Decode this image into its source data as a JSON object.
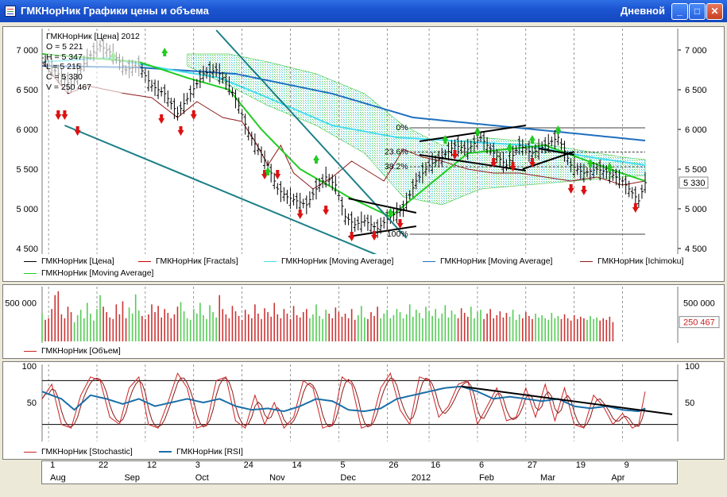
{
  "window": {
    "title": "ГМКНорНик Графики цены и объема",
    "period": "Дневной",
    "buttons": {
      "minimize": "_",
      "maximize": "□",
      "close": "✕"
    }
  },
  "colors": {
    "price": "#000000",
    "fractals": "#cc0000",
    "ma_fast": "#22cc22",
    "ma_mid": "#44ddee",
    "ma_slow": "#1f6fbf",
    "ichimoku": "#8b1a1a",
    "cloud": "#55cc55",
    "cloud_alt": "#44ccee",
    "vol_up": "#55cc55",
    "vol_down": "#cc3333",
    "stoch": "#cc2222",
    "rsi": "#1a6fa8",
    "trend": "#1a7f86"
  },
  "price_panel": {
    "ohlc": {
      "title": "ГМКНорНик [Цена] 2012",
      "open": "O = 5 221",
      "high": "H = 5 347",
      "low": "L = 5 215",
      "close": "C = 5 330",
      "volume": "V = 250 467"
    },
    "last_price": "5 330",
    "y_ticks": [
      "7 000",
      "6 500",
      "6 000",
      "5 500",
      "5 000",
      "4 500"
    ],
    "fib_levels": [
      {
        "label": "0%",
        "value": 6020
      },
      {
        "label": "23.6%",
        "value": 5715
      },
      {
        "label": "38.2%",
        "value": 5530
      },
      {
        "label": "100%",
        "value": 4680
      }
    ],
    "legend": [
      {
        "label": "ГМКНорНик [Цена]",
        "color": "#000000"
      },
      {
        "label": "ГМКНорНик [Fractals]",
        "color": "#cc0000"
      },
      {
        "label": "ГМКНорНик [Moving Average]",
        "color": "#44ddee"
      },
      {
        "label": "ГМКНорНик [Moving Average]",
        "color": "#1f6fbf"
      },
      {
        "label": "ГМКНорНик [Ichimoku]",
        "color": "#8b1a1a"
      },
      {
        "label": "ГМКНорНик [Moving Average]",
        "color": "#22cc22"
      }
    ]
  },
  "volume_panel": {
    "y_tick": "500 000",
    "last_volume": "250 467",
    "legend": [
      {
        "label": "ГМКНорНик [Объем]",
        "color": "#cc2222"
      }
    ]
  },
  "osc_panel": {
    "y_ticks": [
      "100",
      "50"
    ],
    "legend": [
      {
        "label": "ГМКНорНик [Stochastic]",
        "color": "#cc2222"
      },
      {
        "label": "ГМКНорНик [RSI]",
        "color": "#1a6fa8"
      }
    ]
  },
  "date_axis": {
    "days": [
      {
        "label": "1",
        "idx": 2
      },
      {
        "label": "22",
        "idx": 17
      },
      {
        "label": "12",
        "idx": 32
      },
      {
        "label": "3",
        "idx": 47
      },
      {
        "label": "24",
        "idx": 62
      },
      {
        "label": "14",
        "idx": 77
      },
      {
        "label": "5",
        "idx": 92
      },
      {
        "label": "26",
        "idx": 107
      },
      {
        "label": "16",
        "idx": 120
      },
      {
        "label": "6",
        "idx": 135
      },
      {
        "label": "27",
        "idx": 150
      },
      {
        "label": "19",
        "idx": 165
      },
      {
        "label": "9",
        "idx": 180
      }
    ],
    "months": [
      {
        "label": "Aug",
        "idx": 2
      },
      {
        "label": "Sep",
        "idx": 25
      },
      {
        "label": "Oct",
        "idx": 47
      },
      {
        "label": "Nov",
        "idx": 70
      },
      {
        "label": "Dec",
        "idx": 92
      },
      {
        "label": "2012",
        "idx": 114
      },
      {
        "label": "Feb",
        "idx": 135
      },
      {
        "label": "Mar",
        "idx": 154
      },
      {
        "label": "Apr",
        "idx": 176
      }
    ]
  },
  "chart_data": {
    "type": "line",
    "title": "ГМКНорНик Графики цены и объема",
    "ylim": [
      4450,
      7250
    ],
    "ohlc_last": {
      "open": 5221,
      "high": 5347,
      "low": 5215,
      "close": 5330,
      "volume": 250467
    },
    "close_anchors": [
      [
        0,
        6900
      ],
      [
        5,
        6700
      ],
      [
        9,
        6550
      ],
      [
        14,
        6900
      ],
      [
        18,
        7050
      ],
      [
        22,
        6950
      ],
      [
        26,
        6750
      ],
      [
        30,
        6800
      ],
      [
        34,
        6550
      ],
      [
        38,
        6450
      ],
      [
        42,
        6200
      ],
      [
        46,
        6450
      ],
      [
        50,
        6700
      ],
      [
        54,
        6750
      ],
      [
        58,
        6550
      ],
      [
        61,
        6300
      ],
      [
        64,
        5950
      ],
      [
        67,
        5750
      ],
      [
        70,
        5550
      ],
      [
        73,
        5250
      ],
      [
        76,
        5150
      ],
      [
        79,
        5100
      ],
      [
        82,
        5050
      ],
      [
        85,
        5250
      ],
      [
        88,
        5400
      ],
      [
        91,
        5300
      ],
      [
        94,
        4900
      ],
      [
        97,
        4800
      ],
      [
        100,
        4850
      ],
      [
        104,
        4750
      ],
      [
        108,
        4900
      ],
      [
        112,
        5000
      ],
      [
        116,
        5350
      ],
      [
        120,
        5550
      ],
      [
        124,
        5650
      ],
      [
        128,
        5800
      ],
      [
        132,
        5750
      ],
      [
        136,
        5900
      ],
      [
        140,
        5700
      ],
      [
        144,
        5550
      ],
      [
        148,
        5800
      ],
      [
        152,
        5700
      ],
      [
        156,
        5800
      ],
      [
        160,
        5900
      ],
      [
        164,
        5550
      ],
      [
        168,
        5450
      ],
      [
        172,
        5500
      ],
      [
        176,
        5450
      ],
      [
        180,
        5350
      ],
      [
        183,
        5200
      ],
      [
        185,
        5100
      ],
      [
        187,
        5330
      ]
    ],
    "ma_fast_anchors": [
      [
        0,
        6950
      ],
      [
        15,
        6900
      ],
      [
        30,
        6850
      ],
      [
        45,
        6650
      ],
      [
        58,
        6500
      ],
      [
        68,
        6000
      ],
      [
        80,
        5500
      ],
      [
        95,
        5150
      ],
      [
        108,
        4900
      ],
      [
        120,
        5300
      ],
      [
        132,
        5700
      ],
      [
        144,
        5750
      ],
      [
        156,
        5800
      ],
      [
        166,
        5650
      ],
      [
        176,
        5500
      ],
      [
        187,
        5350
      ]
    ],
    "ma_mid_anchors": [
      [
        0,
        6850
      ],
      [
        20,
        6900
      ],
      [
        40,
        6750
      ],
      [
        55,
        6650
      ],
      [
        70,
        6400
      ],
      [
        90,
        6050
      ],
      [
        110,
        5900
      ],
      [
        130,
        5850
      ],
      [
        150,
        5800
      ],
      [
        170,
        5650
      ],
      [
        187,
        5550
      ]
    ],
    "ma_slow_anchors": [
      [
        0,
        6800
      ],
      [
        30,
        6780
      ],
      [
        60,
        6700
      ],
      [
        90,
        6450
      ],
      [
        115,
        6150
      ],
      [
        140,
        6050
      ],
      [
        165,
        5950
      ],
      [
        187,
        5860
      ]
    ],
    "ichimoku_anchors": [
      [
        0,
        6850
      ],
      [
        8,
        6450
      ],
      [
        14,
        6550
      ],
      [
        20,
        6500
      ],
      [
        26,
        6450
      ],
      [
        34,
        6400
      ],
      [
        42,
        6150
      ],
      [
        48,
        6350
      ],
      [
        56,
        6150
      ],
      [
        62,
        6100
      ],
      [
        66,
        5850
      ],
      [
        70,
        5550
      ],
      [
        74,
        5800
      ],
      [
        78,
        5450
      ],
      [
        84,
        5250
      ],
      [
        90,
        5400
      ],
      [
        96,
        5600
      ],
      [
        100,
        5500
      ],
      [
        106,
        5350
      ],
      [
        112,
        5750
      ],
      [
        118,
        5650
      ],
      [
        124,
        5600
      ],
      [
        132,
        5500
      ],
      [
        140,
        5450
      ],
      [
        148,
        5450
      ],
      [
        156,
        5400
      ],
      [
        164,
        5350
      ],
      [
        172,
        5400
      ],
      [
        180,
        5300
      ],
      [
        187,
        5350
      ]
    ],
    "cloud_anchors": [
      {
        "x": 45,
        "top": 6950,
        "bot": 6800
      },
      {
        "x": 58,
        "top": 6950,
        "bot": 6550
      },
      {
        "x": 70,
        "top": 6850,
        "bot": 6300
      },
      {
        "x": 85,
        "top": 6700,
        "bot": 6050
      },
      {
        "x": 100,
        "top": 6450,
        "bot": 5700
      },
      {
        "x": 112,
        "top": 6050,
        "bot": 5150
      },
      {
        "x": 124,
        "top": 5800,
        "bot": 5050
      },
      {
        "x": 136,
        "top": 5900,
        "bot": 5250
      },
      {
        "x": 150,
        "top": 5850,
        "bot": 5300
      },
      {
        "x": 165,
        "top": 5750,
        "bot": 5350
      },
      {
        "x": 180,
        "top": 5650,
        "bot": 5400
      },
      {
        "x": 187,
        "top": 5620,
        "bot": 5420
      }
    ],
    "fractals_down": [
      [
        5,
        6150
      ],
      [
        7,
        6150
      ],
      [
        11,
        5950
      ],
      [
        37,
        6100
      ],
      [
        43,
        5950
      ],
      [
        47,
        6150
      ],
      [
        69,
        5400
      ],
      [
        73,
        5400
      ],
      [
        80,
        4900
      ],
      [
        88,
        4950
      ],
      [
        96,
        4620
      ],
      [
        103,
        4630
      ],
      [
        111,
        4780
      ],
      [
        128,
        5650
      ],
      [
        140,
        5550
      ],
      [
        146,
        5500
      ],
      [
        152,
        5550
      ],
      [
        164,
        5220
      ],
      [
        168,
        5200
      ],
      [
        184,
        4980
      ]
    ],
    "fractals_up": [
      [
        22,
        6950
      ],
      [
        38,
        7000
      ],
      [
        70,
        5500
      ],
      [
        85,
        5650
      ],
      [
        108,
        4980
      ],
      [
        125,
        5900
      ],
      [
        135,
        6000
      ],
      [
        145,
        5800
      ],
      [
        152,
        5900
      ],
      [
        160,
        6020
      ],
      [
        170,
        5600
      ],
      [
        176,
        5550
      ]
    ],
    "trendlines": [
      [
        [
          7,
          6050
        ],
        [
          105,
          4400
        ]
      ],
      [
        [
          54,
          7250
        ],
        [
          113,
          4630
        ]
      ],
      [
        [
          95,
          4650
        ],
        [
          116,
          4780
        ]
      ],
      [
        [
          95,
          5130
        ],
        [
          116,
          4950
        ]
      ],
      [
        [
          117,
          5850
        ],
        [
          150,
          6050
        ]
      ],
      [
        [
          117,
          5680
        ],
        [
          150,
          5480
        ]
      ],
      [
        [
          154,
          5760
        ],
        [
          165,
          5680
        ]
      ],
      [
        [
          149,
          5500
        ],
        [
          165,
          5720
        ]
      ]
    ],
    "volume_series": [
      360000,
      280000,
      300000,
      420000,
      600000,
      650000,
      350000,
      300000,
      450000,
      380000,
      250000,
      340000,
      410000,
      300000,
      500000,
      360000,
      270000,
      420000,
      600000,
      450000,
      380000,
      310000,
      290000,
      480000,
      350000,
      520000,
      300000,
      440000,
      360000,
      610000,
      400000,
      330000,
      290000,
      350000,
      480000,
      380000,
      460000,
      310000,
      420000,
      370000,
      300000,
      350000,
      450000,
      510000,
      390000,
      300000,
      280000,
      420000,
      360000,
      500000,
      340000,
      290000,
      470000,
      380000,
      310000,
      600000,
      420000,
      350000,
      300000,
      460000,
      390000,
      330000,
      280000,
      410000,
      350000,
      300000,
      480000,
      360000,
      290000,
      430000,
      380000,
      320000,
      500000,
      350000,
      300000,
      420000,
      360000,
      290000,
      460000,
      340000,
      310000,
      380000,
      420000,
      300000,
      350000,
      480000,
      330000,
      290000,
      410000,
      360000,
      300000,
      440000,
      380000,
      320000,
      360000,
      300000,
      420000,
      280000,
      340000,
      460000,
      310000,
      290000,
      380000,
      330000,
      450000,
      300000,
      360000,
      410000,
      300000,
      340000,
      420000,
      380000,
      300000,
      350000,
      480000,
      320000,
      410000,
      370000,
      300000,
      450000,
      390000,
      330000,
      420000,
      300000,
      360000,
      470000,
      310000,
      400000,
      350000,
      300000,
      430000,
      370000,
      320000,
      450000,
      300000,
      380000,
      410000,
      290000,
      360000,
      420000,
      300000,
      340000,
      390000,
      310000,
      370000,
      320000,
      410000,
      280000,
      350000,
      300000,
      380000,
      330000,
      290000,
      360000,
      310000,
      340000,
      300000,
      280000,
      370000,
      300000,
      330000,
      290000,
      350000,
      300000,
      270000,
      340000,
      290000,
      320000,
      300000,
      280000,
      330000,
      290000,
      310000,
      270000,
      300000,
      280000,
      320000,
      250467
    ],
    "stoch_anchors": [
      [
        0,
        55
      ],
      [
        3,
        75
      ],
      [
        6,
        20
      ],
      [
        9,
        15
      ],
      [
        12,
        60
      ],
      [
        15,
        85
      ],
      [
        18,
        80
      ],
      [
        21,
        30
      ],
      [
        24,
        20
      ],
      [
        27,
        70
      ],
      [
        30,
        85
      ],
      [
        33,
        20
      ],
      [
        36,
        15
      ],
      [
        39,
        50
      ],
      [
        42,
        90
      ],
      [
        45,
        70
      ],
      [
        48,
        15
      ],
      [
        51,
        20
      ],
      [
        54,
        80
      ],
      [
        57,
        85
      ],
      [
        60,
        25
      ],
      [
        63,
        15
      ],
      [
        66,
        60
      ],
      [
        69,
        20
      ],
      [
        72,
        50
      ],
      [
        75,
        15
      ],
      [
        78,
        30
      ],
      [
        81,
        80
      ],
      [
        84,
        70
      ],
      [
        87,
        15
      ],
      [
        90,
        20
      ],
      [
        93,
        85
      ],
      [
        96,
        75
      ],
      [
        99,
        15
      ],
      [
        102,
        20
      ],
      [
        105,
        70
      ],
      [
        108,
        90
      ],
      [
        111,
        40
      ],
      [
        114,
        20
      ],
      [
        117,
        85
      ],
      [
        120,
        80
      ],
      [
        123,
        30
      ],
      [
        126,
        45
      ],
      [
        129,
        75
      ],
      [
        132,
        80
      ],
      [
        135,
        20
      ],
      [
        138,
        45
      ],
      [
        141,
        70
      ],
      [
        144,
        25
      ],
      [
        147,
        30
      ],
      [
        150,
        70
      ],
      [
        153,
        30
      ],
      [
        156,
        75
      ],
      [
        159,
        25
      ],
      [
        162,
        70
      ],
      [
        165,
        20
      ],
      [
        168,
        15
      ],
      [
        171,
        60
      ],
      [
        174,
        45
      ],
      [
        177,
        20
      ],
      [
        180,
        35
      ],
      [
        183,
        15
      ],
      [
        185,
        20
      ],
      [
        187,
        65
      ]
    ],
    "rsi_anchors": [
      [
        0,
        65
      ],
      [
        6,
        55
      ],
      [
        10,
        40
      ],
      [
        15,
        60
      ],
      [
        20,
        55
      ],
      [
        25,
        48
      ],
      [
        30,
        55
      ],
      [
        35,
        45
      ],
      [
        40,
        50
      ],
      [
        45,
        55
      ],
      [
        50,
        50
      ],
      [
        55,
        55
      ],
      [
        60,
        45
      ],
      [
        65,
        40
      ],
      [
        70,
        42
      ],
      [
        75,
        38
      ],
      [
        80,
        45
      ],
      [
        85,
        55
      ],
      [
        90,
        52
      ],
      [
        95,
        40
      ],
      [
        100,
        38
      ],
      [
        105,
        42
      ],
      [
        110,
        55
      ],
      [
        115,
        60
      ],
      [
        120,
        65
      ],
      [
        125,
        70
      ],
      [
        130,
        72
      ],
      [
        135,
        65
      ],
      [
        140,
        55
      ],
      [
        145,
        58
      ],
      [
        150,
        55
      ],
      [
        155,
        52
      ],
      [
        160,
        55
      ],
      [
        165,
        45
      ],
      [
        170,
        42
      ],
      [
        175,
        45
      ],
      [
        180,
        40
      ],
      [
        185,
        38
      ],
      [
        187,
        42
      ]
    ],
    "osc_levels": [
      80,
      20
    ],
    "osc_trendline": [
      [
        130,
        72
      ],
      [
        188,
        36
      ]
    ]
  }
}
